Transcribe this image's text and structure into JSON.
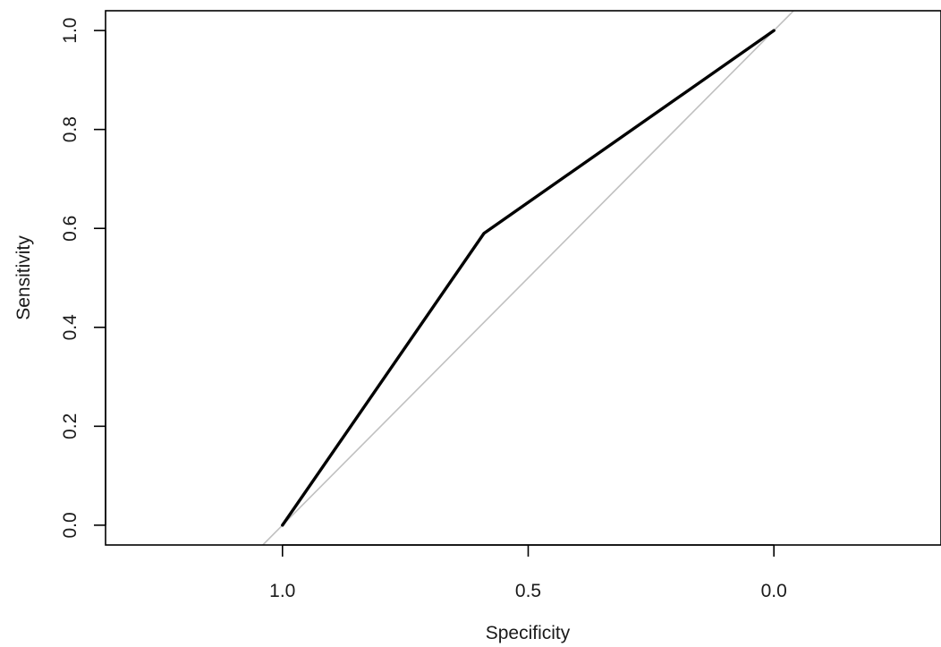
{
  "chart_data": {
    "type": "line",
    "xlabel": "Specificity",
    "ylabel": "Sensitivity",
    "xlim": [
      1.36,
      -0.34
    ],
    "ylim": [
      -0.04,
      1.04
    ],
    "x_reversed": true,
    "xticks": [
      1.0,
      0.5,
      0.0
    ],
    "xtick_labels": [
      "1.0",
      "0.5",
      "0.0"
    ],
    "yticks": [
      0.0,
      0.2,
      0.4,
      0.6,
      0.8,
      1.0
    ],
    "ytick_labels": [
      "0.0",
      "0.2",
      "0.4",
      "0.6",
      "0.8",
      "1.0"
    ],
    "grid": false,
    "series": [
      {
        "x": [
          1.0,
          0.59,
          0.0
        ],
        "y": [
          0.0,
          0.59,
          1.0
        ],
        "color": "#000000"
      }
    ],
    "reference_line": {
      "description": "diagonal y = 1 - x",
      "x": [
        1.0,
        0.0
      ],
      "y": [
        0.0,
        1.0
      ],
      "color": "#c0c0c0"
    }
  }
}
